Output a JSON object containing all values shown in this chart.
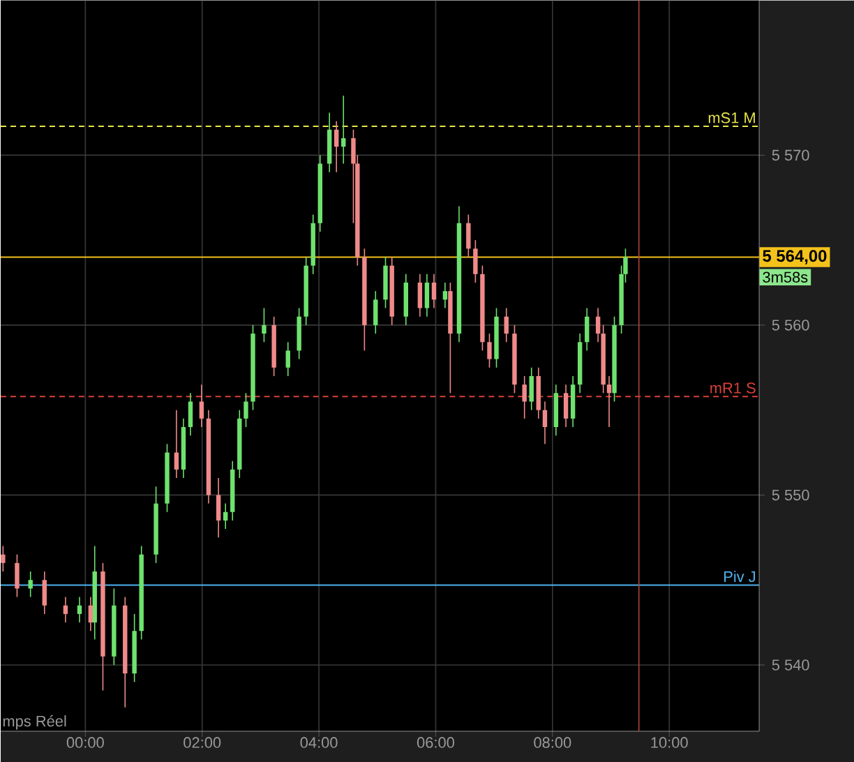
{
  "chart_data": {
    "type": "candlestick",
    "series": [
      {
        "color": "#6ee26e",
        "x": [
          -0.94,
          -0.1,
          0.16,
          0.49,
          0.84,
          0.96,
          1.21,
          1.4,
          1.68,
          1.8,
          2.4,
          2.52,
          2.64,
          2.75,
          2.87,
          3.06,
          3.47,
          3.66,
          3.78,
          3.9,
          4.02,
          4.18,
          4.42,
          4.97,
          5.14,
          5.49,
          5.85,
          6.16,
          6.4,
          7.04,
          7.64,
          8.06,
          8.35,
          8.47,
          8.59,
          9.06,
          9.18,
          9.25
        ],
        "ohlc": [
          [
            5544.5,
            5545.5,
            5544,
            5545
          ],
          [
            5543,
            5544,
            5542.5,
            5543.5
          ],
          [
            5542.5,
            5547,
            5541.5,
            5545.5
          ],
          [
            5540.5,
            5544.5,
            5540,
            5543.5
          ],
          [
            5539.5,
            5543,
            5539,
            5542
          ],
          [
            5542,
            5547,
            5541.5,
            5546.5
          ],
          [
            5546.5,
            5550.5,
            5546,
            5549.5
          ],
          [
            5549.5,
            5553,
            5549,
            5552.5
          ],
          [
            5551.5,
            5554.5,
            5551,
            5554
          ],
          [
            5554,
            5556,
            5553.5,
            5555.5
          ],
          [
            5548.5,
            5549.5,
            5548,
            5549
          ],
          [
            5549,
            5552,
            5548.5,
            5551.5
          ],
          [
            5551.5,
            5555,
            5551,
            5554.5
          ],
          [
            5554.5,
            5556,
            5554,
            5555.5
          ],
          [
            5555.5,
            5560,
            5555,
            5559.5
          ],
          [
            5559.5,
            5561,
            5559,
            5560
          ],
          [
            5557.5,
            5559,
            5557,
            5558.5
          ],
          [
            5558.5,
            5561,
            5558,
            5560.5
          ],
          [
            5560.5,
            5564,
            5560,
            5563.5
          ],
          [
            5563.5,
            5566.5,
            5563,
            5566
          ],
          [
            5566,
            5570,
            5565.5,
            5569.5
          ],
          [
            5569.5,
            5572.5,
            5569,
            5571.5
          ],
          [
            5570.5,
            5573.5,
            5569.5,
            5571
          ],
          [
            5560,
            5562,
            5559.5,
            5561.5
          ],
          [
            5561.5,
            5564,
            5561,
            5563.5
          ],
          [
            5560.5,
            5563,
            5560,
            5562.5
          ],
          [
            5561,
            5563,
            5560.5,
            5562.5
          ],
          [
            5561.5,
            5562.5,
            5561,
            5562
          ],
          [
            5559.5,
            5567,
            5559,
            5566
          ],
          [
            5558,
            5561,
            5557.5,
            5560.5
          ],
          [
            5555.5,
            5557.5,
            5555,
            5557
          ],
          [
            5554,
            5556.5,
            5553.5,
            5556
          ],
          [
            5554.5,
            5557,
            5554,
            5556.5
          ],
          [
            5556.5,
            5559.5,
            5556,
            5559
          ],
          [
            5559,
            5561,
            5558.5,
            5560.5
          ],
          [
            5556,
            5560.5,
            5555.5,
            5560
          ],
          [
            5560,
            5563.5,
            5559.5,
            5563
          ],
          [
            5563,
            5564.5,
            5562.5,
            5564
          ]
        ]
      },
      {
        "color": "#f08a8a",
        "x": [
          -1.41,
          -1.17,
          -0.7,
          -0.34,
          0.09,
          0.3,
          0.68,
          1.56,
          1.99,
          2.11,
          2.28,
          3.23,
          4.3,
          4.59,
          4.66,
          4.78,
          5.25,
          5.73,
          5.97,
          6.25,
          6.56,
          6.68,
          6.8,
          6.92,
          7.21,
          7.35,
          7.52,
          7.76,
          7.87,
          8.23,
          8.78,
          8.87,
          8.97
        ],
        "ohlc": [
          [
            5546.5,
            5547,
            5545.5,
            5546
          ],
          [
            5546,
            5546.5,
            5544,
            5544.5
          ],
          [
            5545,
            5545.5,
            5543,
            5543.5
          ],
          [
            5543.5,
            5544,
            5542.5,
            5543
          ],
          [
            5543.5,
            5544,
            5542,
            5542.5
          ],
          [
            5545.5,
            5546,
            5538.5,
            5540.5
          ],
          [
            5543.5,
            5544,
            5537.5,
            5539.5
          ],
          [
            5552.5,
            5555,
            5551,
            5551.5
          ],
          [
            5555.5,
            5556.5,
            5554,
            5554.5
          ],
          [
            5554.5,
            5555,
            5549.5,
            5550
          ],
          [
            5550,
            5551,
            5547.5,
            5548.5
          ],
          [
            5560,
            5560.5,
            5557,
            5557.5
          ],
          [
            5571.5,
            5572,
            5569,
            5570.5
          ],
          [
            5571,
            5571.5,
            5566,
            5569.5
          ],
          [
            5569.5,
            5570,
            5563.5,
            5564
          ],
          [
            5564,
            5564.5,
            5558.5,
            5560
          ],
          [
            5563.5,
            5564,
            5560,
            5560.5
          ],
          [
            5562.5,
            5563,
            5560.5,
            5561
          ],
          [
            5562.5,
            5563,
            5561,
            5561.5
          ],
          [
            5562,
            5562.5,
            5556,
            5559.5
          ],
          [
            5566,
            5566.5,
            5564,
            5564.5
          ],
          [
            5564.5,
            5565,
            5562.5,
            5563
          ],
          [
            5563,
            5563.5,
            5558.5,
            5559
          ],
          [
            5559,
            5559.5,
            5557.5,
            5558
          ],
          [
            5560.5,
            5561,
            5559,
            5559.5
          ],
          [
            5559.5,
            5560,
            5556,
            5556.5
          ],
          [
            5556.5,
            5557,
            5554.5,
            5555.5
          ],
          [
            5557,
            5557.5,
            5554.5,
            5555
          ],
          [
            5555,
            5555.5,
            5553,
            5554
          ],
          [
            5556,
            5556.5,
            5554,
            5554.5
          ],
          [
            5560.5,
            5561,
            5559,
            5559.5
          ],
          [
            5559.5,
            5560,
            5556,
            5556.5
          ],
          [
            5556.5,
            5557,
            5554,
            5556
          ]
        ]
      }
    ],
    "xlim": [
      -1.45,
      11.54
    ],
    "ylim": [
      5536.1,
      5579.1
    ],
    "xticks": [
      {
        "value": 0,
        "label": "00:00"
      },
      {
        "value": 2,
        "label": "02:00"
      },
      {
        "value": 4,
        "label": "04:00"
      },
      {
        "value": 6,
        "label": "06:00"
      },
      {
        "value": 8,
        "label": "08:00"
      },
      {
        "value": 10,
        "label": "10:00"
      }
    ],
    "yticks": [
      {
        "value": 5540,
        "label": "5 540"
      },
      {
        "value": 5550,
        "label": "5 550"
      },
      {
        "value": 5560,
        "label": "5 560"
      },
      {
        "value": 5570,
        "label": "5 570"
      }
    ],
    "grid": true,
    "ref_lines": [
      {
        "axis": "y",
        "value": 5571.7,
        "label": "mS1 M",
        "color": "#e6e64a",
        "line_style": "dashed"
      },
      {
        "axis": "y",
        "value": 5555.8,
        "label": "mR1 S",
        "color": "#d9403a",
        "line_style": "dashed"
      },
      {
        "axis": "y",
        "value": 5544.7,
        "label": "Piv J",
        "color": "#4fb3ef",
        "line_style": "solid"
      },
      {
        "axis": "y",
        "value": 5564,
        "label": "5 564,00",
        "color": "#f3c21b",
        "line_style": "solid"
      },
      {
        "axis": "x",
        "value": 9.48,
        "color": "#b0443a",
        "line_style": "solid"
      }
    ],
    "annotations": [
      "3m58s",
      "mps Réel"
    ]
  }
}
